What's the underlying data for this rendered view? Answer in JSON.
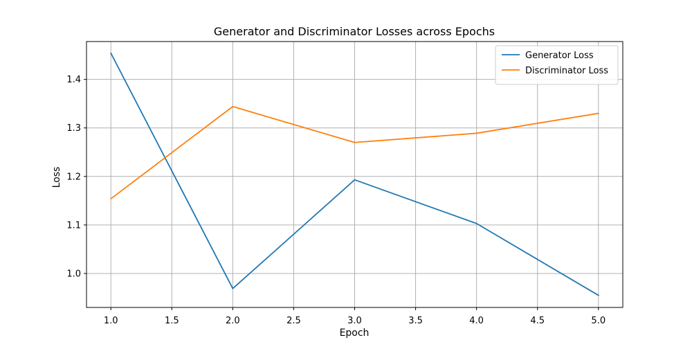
{
  "chart_data": {
    "type": "line",
    "title": "Generator and Discriminator Losses across Epochs",
    "xlabel": "Epoch",
    "ylabel": "Loss",
    "x": [
      1,
      2,
      3,
      4,
      5
    ],
    "series": [
      {
        "name": "Generator Loss",
        "values": [
          1.454,
          0.969,
          1.193,
          1.103,
          0.955
        ],
        "color": "#1f77b4"
      },
      {
        "name": "Discriminator Loss",
        "values": [
          1.154,
          1.344,
          1.27,
          1.289,
          1.33
        ],
        "color": "#ff7f0e"
      }
    ],
    "xlim": [
      0.8,
      5.2
    ],
    "ylim": [
      0.93,
      1.478
    ],
    "xticks": [
      1.0,
      1.5,
      2.0,
      2.5,
      3.0,
      3.5,
      4.0,
      4.5,
      5.0
    ],
    "xtick_labels": [
      "1.0",
      "1.5",
      "2.0",
      "2.5",
      "3.0",
      "3.5",
      "4.0",
      "4.5",
      "5.0"
    ],
    "yticks": [
      1.0,
      1.1,
      1.2,
      1.3,
      1.4
    ],
    "ytick_labels": [
      "1.0",
      "1.1",
      "1.2",
      "1.3",
      "1.4"
    ],
    "grid": true,
    "legend_position": "top-right"
  }
}
